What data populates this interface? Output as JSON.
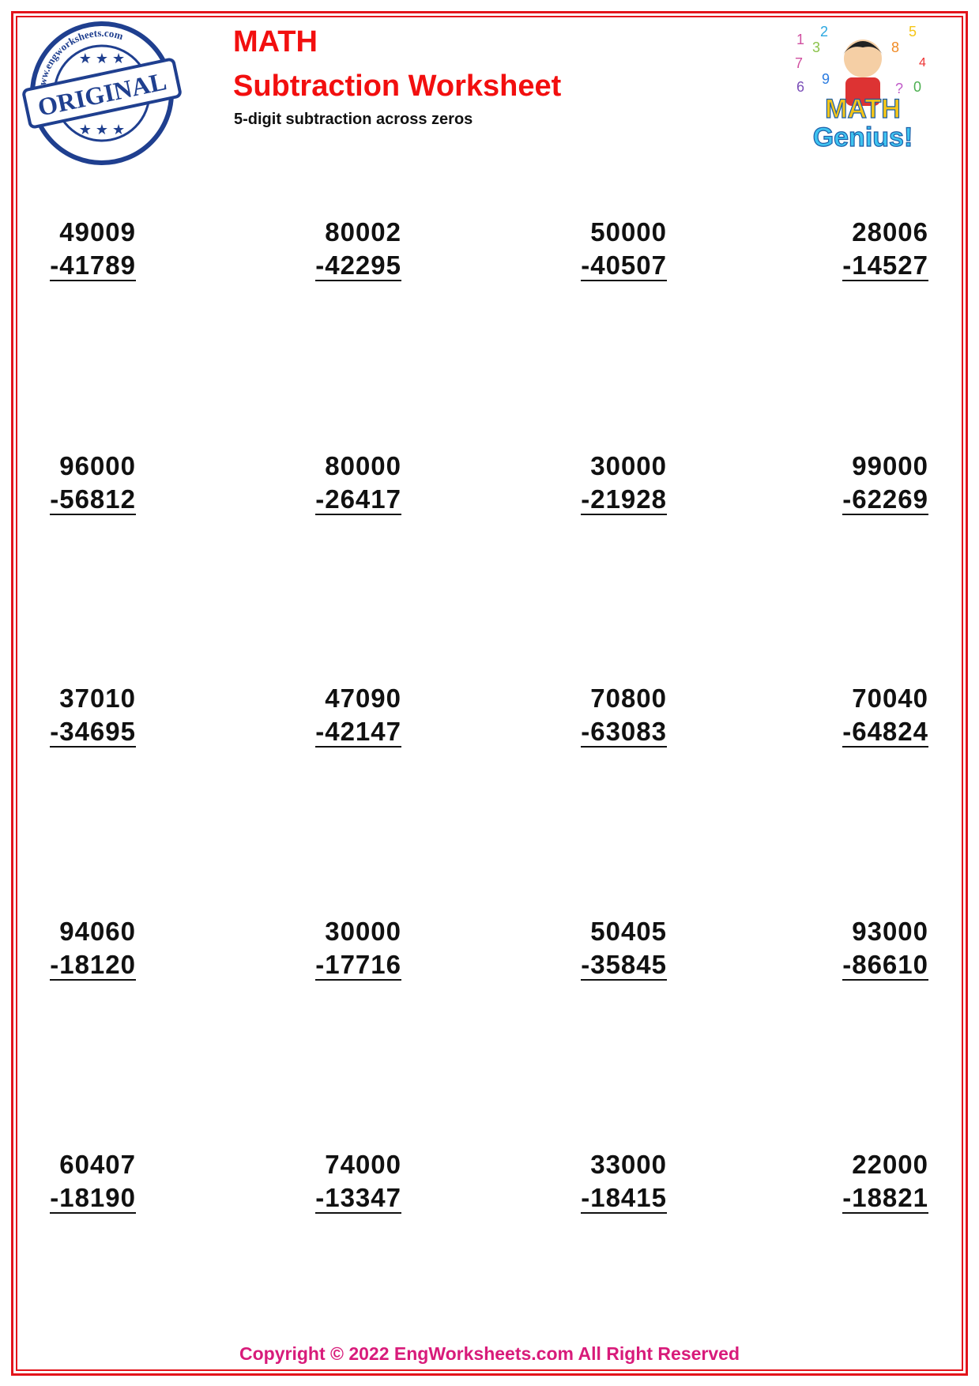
{
  "header": {
    "title": "MATH",
    "subtitle": "Subtraction Worksheet",
    "description": "5-digit subtraction across zeros",
    "stamp_text": "ORIGINAL",
    "stamp_ring_text": "www.engworksheets.com",
    "logo_text": "MATH Genius!"
  },
  "problems": [
    {
      "top": "49009",
      "bottom": "-41789"
    },
    {
      "top": "80002",
      "bottom": "-42295"
    },
    {
      "top": "50000",
      "bottom": "-40507"
    },
    {
      "top": "28006",
      "bottom": "-14527"
    },
    {
      "top": "96000",
      "bottom": "-56812"
    },
    {
      "top": "80000",
      "bottom": "-26417"
    },
    {
      "top": "30000",
      "bottom": "-21928"
    },
    {
      "top": "99000",
      "bottom": "-62269"
    },
    {
      "top": "37010",
      "bottom": "-34695"
    },
    {
      "top": "47090",
      "bottom": "-42147"
    },
    {
      "top": "70800",
      "bottom": "-63083"
    },
    {
      "top": "70040",
      "bottom": "-64824"
    },
    {
      "top": "94060",
      "bottom": "-18120"
    },
    {
      "top": "30000",
      "bottom": "-17716"
    },
    {
      "top": "50405",
      "bottom": "-35845"
    },
    {
      "top": "93000",
      "bottom": "-86610"
    },
    {
      "top": "60407",
      "bottom": "-18190"
    },
    {
      "top": "74000",
      "bottom": "-13347"
    },
    {
      "top": "33000",
      "bottom": "-18415"
    },
    {
      "top": "22000",
      "bottom": "-18821"
    }
  ],
  "footer": "Copyright © 2022 EngWorksheets.com All Right Reserved",
  "colors": {
    "border": "#e3141b",
    "title": "#f20f0f",
    "footer": "#d81b7a",
    "stamp": "#1f3f8f"
  }
}
